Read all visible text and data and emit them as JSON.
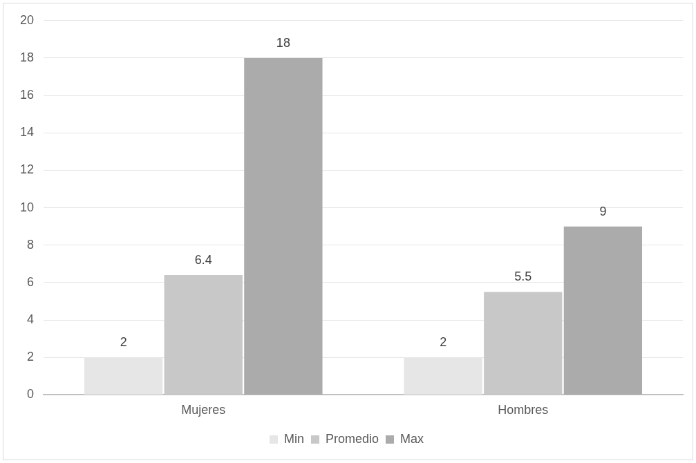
{
  "chart_data": {
    "type": "bar",
    "categories": [
      "Mujeres",
      "Hombres"
    ],
    "series": [
      {
        "name": "Min",
        "color": "#e6e6e6",
        "values": [
          2,
          2
        ]
      },
      {
        "name": "Promedio",
        "color": "#c8c8c8",
        "values": [
          6.4,
          5.5
        ]
      },
      {
        "name": "Max",
        "color": "#ababab",
        "values": [
          18,
          9
        ]
      }
    ],
    "ylim": [
      0,
      20
    ],
    "yticks": [
      0,
      2,
      4,
      6,
      8,
      10,
      12,
      14,
      16,
      18,
      20
    ],
    "grid": "y",
    "legend": "bottom",
    "data_labels": true
  }
}
